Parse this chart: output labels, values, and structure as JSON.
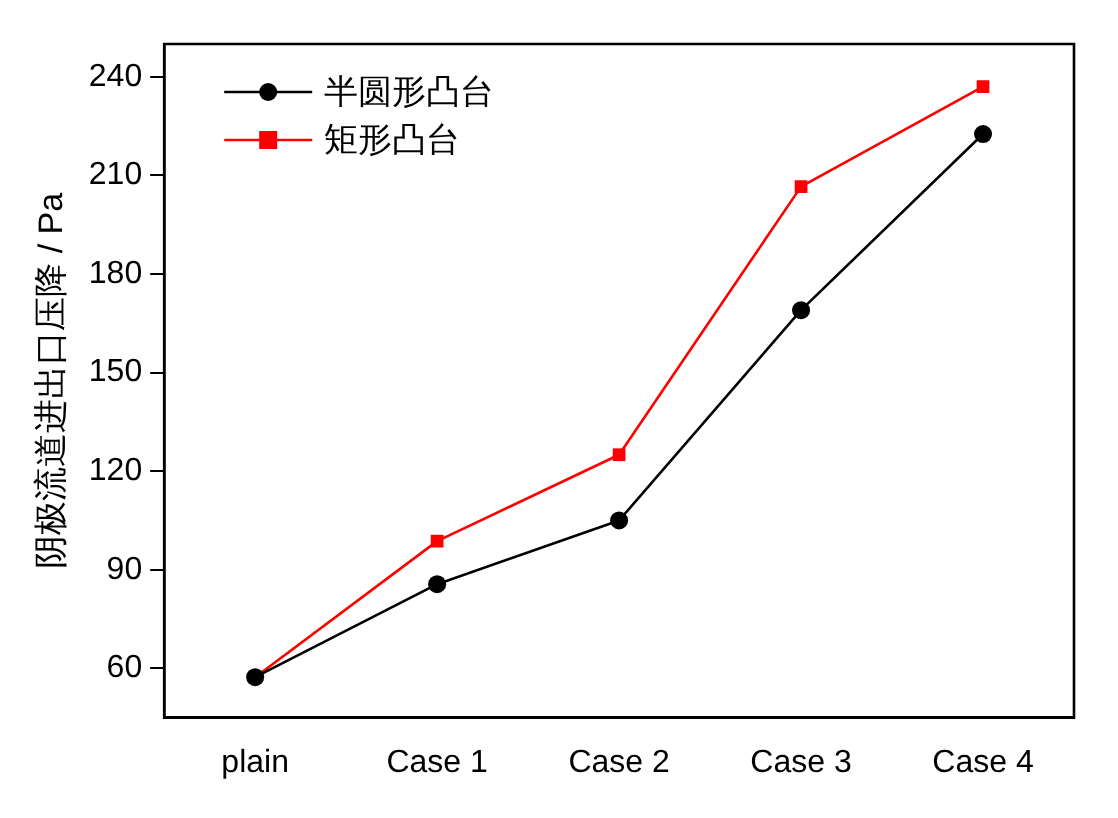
{
  "chart_data": {
    "type": "line",
    "ylabel": "阴极流道进出口压降 / Pa",
    "categories": [
      "plain",
      "Case 1",
      "Case 2",
      "Case 3",
      "Case 4"
    ],
    "series": [
      {
        "name": "半圆形凸台",
        "color": "#000000",
        "marker": "circle",
        "values": [
          57.3,
          85.6,
          105,
          169,
          222.6
        ]
      },
      {
        "name": "矩形凸台",
        "color": "#ff0000",
        "marker": "square",
        "values": [
          57.3,
          98.7,
          125,
          206.6,
          237
        ]
      }
    ],
    "ylim": [
      45,
      250
    ],
    "yticks": [
      60,
      90,
      120,
      150,
      180,
      210,
      240
    ],
    "grid": false,
    "legend": "top left",
    "line_style": "solid"
  }
}
